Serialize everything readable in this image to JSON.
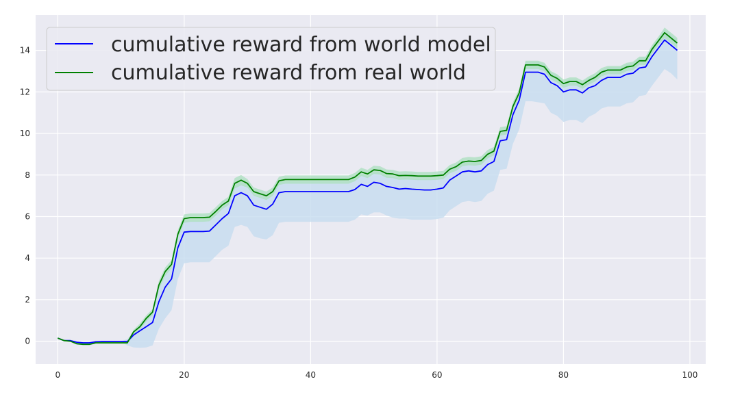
{
  "chart_data": {
    "type": "line",
    "title": "",
    "xlabel": "",
    "ylabel": "",
    "xlim": [
      -3.5,
      102.5
    ],
    "ylim": [
      -1.1,
      15.7
    ],
    "xticks": [
      0,
      20,
      40,
      60,
      80,
      100
    ],
    "yticks": [
      0,
      2,
      4,
      6,
      8,
      10,
      12,
      14
    ],
    "grid": true,
    "background": "#eaeaf2",
    "legend": {
      "placement": "top-left"
    },
    "series": [
      {
        "name": "cumulative reward from world model",
        "color": "#0000ff",
        "band_color": "#c6dcef",
        "x": [
          0,
          1,
          2,
          3,
          4,
          5,
          6,
          7,
          8,
          9,
          10,
          11,
          12,
          13,
          14,
          15,
          16,
          17,
          18,
          19,
          20,
          21,
          22,
          23,
          24,
          25,
          26,
          27,
          28,
          29,
          30,
          31,
          32,
          33,
          34,
          35,
          36,
          37,
          38,
          39,
          40,
          41,
          42,
          43,
          44,
          45,
          46,
          47,
          48,
          49,
          50,
          51,
          52,
          53,
          54,
          55,
          56,
          57,
          58,
          59,
          60,
          61,
          62,
          63,
          64,
          65,
          66,
          67,
          68,
          69,
          70,
          71,
          72,
          73,
          74,
          75,
          76,
          77,
          78,
          79,
          80,
          81,
          82,
          83,
          84,
          85,
          86,
          87,
          88,
          89,
          90,
          91,
          92,
          93,
          94,
          95,
          96,
          97,
          98
        ],
        "mean": [
          0.15,
          0.03,
          0.03,
          -0.05,
          -0.08,
          -0.08,
          -0.03,
          -0.02,
          -0.02,
          -0.02,
          -0.02,
          -0.02,
          0.3,
          0.5,
          0.7,
          0.9,
          1.9,
          2.6,
          3.0,
          4.5,
          5.25,
          5.28,
          5.28,
          5.28,
          5.3,
          5.6,
          5.9,
          6.15,
          7.0,
          7.15,
          7.0,
          6.55,
          6.45,
          6.35,
          6.6,
          7.15,
          7.2,
          7.2,
          7.2,
          7.2,
          7.2,
          7.2,
          7.2,
          7.2,
          7.2,
          7.2,
          7.2,
          7.3,
          7.55,
          7.45,
          7.65,
          7.6,
          7.45,
          7.4,
          7.32,
          7.35,
          7.32,
          7.3,
          7.28,
          7.28,
          7.32,
          7.38,
          7.75,
          7.95,
          8.15,
          8.2,
          8.15,
          8.2,
          8.5,
          8.65,
          9.65,
          9.7,
          10.9,
          11.6,
          12.95,
          12.95,
          12.95,
          12.85,
          12.45,
          12.3,
          12.0,
          12.1,
          12.1,
          11.95,
          12.2,
          12.3,
          12.55,
          12.7,
          12.7,
          12.7,
          12.85,
          12.9,
          13.15,
          13.2,
          13.7,
          14.1,
          14.5,
          14.25,
          14.0
        ],
        "lower": [
          0.15,
          0.02,
          0.02,
          -0.1,
          -0.15,
          -0.15,
          -0.1,
          -0.05,
          -0.05,
          -0.05,
          -0.05,
          -0.2,
          -0.3,
          -0.32,
          -0.3,
          -0.2,
          0.6,
          1.1,
          1.5,
          3.0,
          3.75,
          3.8,
          3.8,
          3.8,
          3.8,
          4.1,
          4.4,
          4.6,
          5.5,
          5.6,
          5.5,
          5.05,
          4.95,
          4.9,
          5.1,
          5.7,
          5.75,
          5.75,
          5.75,
          5.75,
          5.75,
          5.75,
          5.75,
          5.75,
          5.75,
          5.75,
          5.75,
          5.85,
          6.1,
          6.05,
          6.2,
          6.2,
          6.05,
          5.95,
          5.9,
          5.9,
          5.85,
          5.85,
          5.85,
          5.85,
          5.88,
          5.95,
          6.3,
          6.5,
          6.7,
          6.75,
          6.7,
          6.75,
          7.1,
          7.25,
          8.25,
          8.3,
          9.5,
          10.2,
          11.55,
          11.55,
          11.5,
          11.45,
          11.0,
          10.85,
          10.55,
          10.65,
          10.65,
          10.5,
          10.8,
          10.95,
          11.2,
          11.3,
          11.3,
          11.3,
          11.45,
          11.5,
          11.8,
          11.85,
          12.3,
          12.7,
          13.1,
          12.9,
          12.6
        ],
        "upper": [
          0.15,
          0.04,
          0.04,
          0.0,
          -0.02,
          -0.02,
          0.02,
          0.0,
          0.0,
          0.0,
          0.0,
          0.1,
          0.45,
          0.75,
          1.05,
          1.35,
          2.55,
          3.2,
          3.6,
          5.0,
          5.8,
          5.82,
          5.82,
          5.82,
          5.85,
          6.15,
          6.45,
          6.7,
          7.5,
          7.65,
          7.55,
          7.05,
          6.95,
          6.85,
          7.1,
          7.65,
          7.7,
          7.7,
          7.7,
          7.7,
          7.7,
          7.7,
          7.7,
          7.7,
          7.7,
          7.7,
          7.7,
          7.8,
          8.05,
          7.95,
          8.15,
          8.1,
          7.95,
          7.9,
          7.82,
          7.85,
          7.82,
          7.8,
          7.78,
          7.78,
          7.82,
          7.88,
          8.25,
          8.45,
          8.65,
          8.7,
          8.65,
          8.7,
          9.0,
          9.15,
          10.15,
          10.2,
          11.4,
          12.1,
          13.45,
          13.45,
          13.45,
          13.35,
          12.95,
          12.8,
          12.5,
          12.6,
          12.6,
          12.45,
          12.7,
          12.8,
          13.05,
          13.2,
          13.2,
          13.2,
          13.35,
          13.4,
          13.65,
          13.7,
          14.2,
          14.6,
          15.0,
          14.75,
          14.5
        ]
      },
      {
        "name": "cumulative reward from real world",
        "color": "#008000",
        "band_color": "#aee0c0",
        "x": [
          0,
          1,
          2,
          3,
          4,
          5,
          6,
          7,
          8,
          9,
          10,
          11,
          12,
          13,
          14,
          15,
          16,
          17,
          18,
          19,
          20,
          21,
          22,
          23,
          24,
          25,
          26,
          27,
          28,
          29,
          30,
          31,
          32,
          33,
          34,
          35,
          36,
          37,
          38,
          39,
          40,
          41,
          42,
          43,
          44,
          45,
          46,
          47,
          48,
          49,
          50,
          51,
          52,
          53,
          54,
          55,
          56,
          57,
          58,
          59,
          60,
          61,
          62,
          63,
          64,
          65,
          66,
          67,
          68,
          69,
          70,
          71,
          72,
          73,
          74,
          75,
          76,
          77,
          78,
          79,
          80,
          81,
          82,
          83,
          84,
          85,
          86,
          87,
          88,
          89,
          90,
          91,
          92,
          93,
          94,
          95,
          96,
          97,
          98
        ],
        "mean": [
          0.15,
          0.03,
          0.0,
          -0.12,
          -0.15,
          -0.15,
          -0.08,
          -0.08,
          -0.08,
          -0.08,
          -0.08,
          -0.08,
          0.45,
          0.7,
          1.1,
          1.4,
          2.7,
          3.35,
          3.7,
          5.15,
          5.9,
          5.95,
          5.95,
          5.95,
          5.97,
          6.25,
          6.55,
          6.75,
          7.6,
          7.75,
          7.6,
          7.2,
          7.1,
          7.0,
          7.2,
          7.72,
          7.78,
          7.78,
          7.78,
          7.78,
          7.78,
          7.78,
          7.78,
          7.78,
          7.78,
          7.78,
          7.78,
          7.9,
          8.15,
          8.05,
          8.25,
          8.22,
          8.07,
          8.05,
          7.97,
          7.98,
          7.97,
          7.95,
          7.95,
          7.95,
          7.97,
          8.0,
          8.28,
          8.4,
          8.62,
          8.67,
          8.65,
          8.7,
          9.0,
          9.15,
          10.1,
          10.15,
          11.3,
          11.95,
          13.3,
          13.3,
          13.3,
          13.2,
          12.8,
          12.65,
          12.4,
          12.5,
          12.5,
          12.35,
          12.55,
          12.7,
          12.95,
          13.05,
          13.05,
          13.05,
          13.2,
          13.25,
          13.5,
          13.5,
          14.05,
          14.45,
          14.85,
          14.6,
          14.35
        ],
        "lower": [
          0.12,
          0.0,
          -0.03,
          -0.16,
          -0.19,
          -0.19,
          -0.12,
          -0.12,
          -0.12,
          -0.12,
          -0.12,
          -0.12,
          0.35,
          0.55,
          0.95,
          1.25,
          2.5,
          3.15,
          3.5,
          4.95,
          5.7,
          5.75,
          5.75,
          5.75,
          5.77,
          6.05,
          6.35,
          6.55,
          7.35,
          7.5,
          7.4,
          7.0,
          6.9,
          6.8,
          7.0,
          7.52,
          7.58,
          7.58,
          7.58,
          7.58,
          7.58,
          7.58,
          7.58,
          7.58,
          7.58,
          7.58,
          7.58,
          7.7,
          7.95,
          7.85,
          8.05,
          8.02,
          7.87,
          7.85,
          7.77,
          7.78,
          7.77,
          7.75,
          7.75,
          7.75,
          7.77,
          7.8,
          8.08,
          8.2,
          8.42,
          8.47,
          8.45,
          8.5,
          8.8,
          8.95,
          9.9,
          9.95,
          11.1,
          11.75,
          13.1,
          13.1,
          13.1,
          13.0,
          12.6,
          12.45,
          12.2,
          12.3,
          12.3,
          12.15,
          12.35,
          12.5,
          12.75,
          12.85,
          12.85,
          12.85,
          13.0,
          13.05,
          13.3,
          13.3,
          13.85,
          14.25,
          14.6,
          14.35,
          14.1
        ],
        "upper": [
          0.18,
          0.06,
          0.03,
          -0.08,
          -0.11,
          -0.11,
          -0.04,
          -0.04,
          -0.04,
          -0.04,
          -0.04,
          -0.04,
          0.55,
          0.85,
          1.25,
          1.55,
          2.9,
          3.55,
          3.9,
          5.35,
          6.1,
          6.15,
          6.15,
          6.15,
          6.17,
          6.45,
          6.75,
          6.95,
          7.85,
          8.0,
          7.8,
          7.4,
          7.3,
          7.2,
          7.4,
          7.92,
          7.98,
          7.98,
          7.98,
          7.98,
          7.98,
          7.98,
          7.98,
          7.98,
          7.98,
          7.98,
          7.98,
          8.1,
          8.35,
          8.25,
          8.45,
          8.42,
          8.27,
          8.25,
          8.17,
          8.18,
          8.17,
          8.15,
          8.15,
          8.15,
          8.17,
          8.2,
          8.48,
          8.6,
          8.82,
          8.87,
          8.85,
          8.9,
          9.2,
          9.35,
          10.3,
          10.35,
          11.5,
          12.15,
          13.5,
          13.5,
          13.5,
          13.4,
          13.0,
          12.85,
          12.6,
          12.7,
          12.7,
          12.55,
          12.75,
          12.9,
          13.15,
          13.25,
          13.25,
          13.25,
          13.4,
          13.45,
          13.7,
          13.7,
          14.25,
          14.65,
          15.1,
          14.85,
          14.6
        ]
      }
    ]
  }
}
